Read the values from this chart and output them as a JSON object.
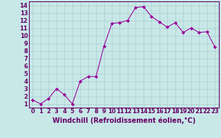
{
  "x": [
    0,
    1,
    2,
    3,
    4,
    5,
    6,
    7,
    8,
    9,
    10,
    11,
    12,
    13,
    14,
    15,
    16,
    17,
    18,
    19,
    20,
    21,
    22,
    23
  ],
  "y": [
    1.5,
    1.0,
    1.7,
    3.0,
    2.2,
    1.0,
    4.0,
    4.6,
    4.6,
    8.6,
    11.6,
    11.7,
    12.0,
    13.7,
    13.8,
    12.5,
    11.8,
    11.1,
    11.7,
    10.4,
    11.0,
    10.4,
    10.5,
    8.5
  ],
  "line_color": "#990099",
  "marker_color": "#990099",
  "bg_color": "#c8e8e8",
  "grid_color": "#aacccc",
  "xlabel": "Windchill (Refroidissement éolien,°C)",
  "xlim": [
    -0.5,
    23.5
  ],
  "ylim": [
    0.5,
    14.5
  ],
  "yticks": [
    1,
    2,
    3,
    4,
    5,
    6,
    7,
    8,
    9,
    10,
    11,
    12,
    13,
    14
  ],
  "xticks": [
    0,
    1,
    2,
    3,
    4,
    5,
    6,
    7,
    8,
    9,
    10,
    11,
    12,
    13,
    14,
    15,
    16,
    17,
    18,
    19,
    20,
    21,
    22,
    23
  ],
  "xlabel_color": "#660066",
  "tick_color": "#660066",
  "spine_color": "#660066",
  "xlabel_fontsize": 7,
  "tick_fontsize": 6
}
